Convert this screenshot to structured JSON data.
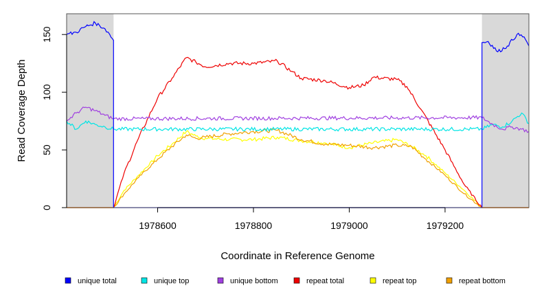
{
  "chart_data": {
    "type": "line",
    "title": "",
    "xlabel": "Coordinate in Reference Genome",
    "ylabel": "Read Coverage Depth",
    "xlim": [
      1978410,
      1979375
    ],
    "ylim": [
      0,
      168
    ],
    "x_ticks": [
      1978600,
      1978800,
      1979000,
      1979200
    ],
    "x_tick_labels": [
      "1978600",
      "1978800",
      "1979000",
      "1979200"
    ],
    "y_ticks": [
      0,
      50,
      100,
      150
    ],
    "y_tick_labels": [
      "0",
      "50",
      "100",
      "150"
    ],
    "grid": false,
    "shaded_regions": [
      {
        "name": "unique-region-left",
        "x": [
          1978410,
          1978508
        ],
        "color": "#d9d9d9"
      },
      {
        "name": "unique-region-right",
        "x": [
          1979277,
          1979375
        ],
        "color": "#d9d9d9"
      }
    ],
    "repeat_region": [
      1978508,
      1979277
    ],
    "legend_position": "bottom",
    "series": [
      {
        "name": "unique total",
        "color": "#0000ff",
        "x": [
          1978410,
          1978430,
          1978450,
          1978470,
          1978490,
          1978500,
          1978508,
          1978508,
          1979277,
          1979277,
          1979290,
          1979310,
          1979330,
          1979350,
          1979365,
          1979375
        ],
        "values": [
          150,
          152,
          157,
          160,
          155,
          150,
          145,
          0,
          0,
          143,
          144,
          135,
          140,
          150,
          148,
          140
        ]
      },
      {
        "name": "unique top",
        "color": "#00e5e5",
        "x": [
          1978410,
          1978430,
          1978450,
          1978470,
          1978490,
          1978508,
          1979277,
          1979300,
          1979320,
          1979340,
          1979360,
          1979375
        ],
        "values": [
          75,
          68,
          75,
          72,
          70,
          68,
          68,
          72,
          70,
          75,
          82,
          73
        ]
      },
      {
        "name": "unique bottom",
        "color": "#a040e0",
        "x": [
          1978410,
          1978430,
          1978450,
          1978470,
          1978490,
          1978508,
          1979277,
          1979300,
          1979320,
          1979340,
          1979360,
          1979375
        ],
        "values": [
          75,
          82,
          87,
          84,
          80,
          77,
          78,
          72,
          68,
          70,
          68,
          66
        ]
      },
      {
        "name": "repeat total",
        "color": "#ee0000",
        "x": [
          1978410,
          1978508,
          1978530,
          1978560,
          1978600,
          1978630,
          1978660,
          1978680,
          1978700,
          1978750,
          1978800,
          1978850,
          1978880,
          1978900,
          1978950,
          1979000,
          1979030,
          1979050,
          1979100,
          1979120,
          1979150,
          1979200,
          1979240,
          1979277,
          1979375
        ],
        "values": [
          0,
          0,
          30,
          60,
          95,
          112,
          130,
          126,
          122,
          125,
          125,
          127,
          118,
          112,
          110,
          104,
          106,
          113,
          111,
          105,
          85,
          50,
          20,
          0,
          0
        ]
      },
      {
        "name": "repeat top",
        "color": "#ffff00",
        "x": [
          1978410,
          1978508,
          1978530,
          1978560,
          1978600,
          1978630,
          1978660,
          1978680,
          1978700,
          1978750,
          1978800,
          1978850,
          1978900,
          1978950,
          1979000,
          1979050,
          1979100,
          1979130,
          1979160,
          1979200,
          1979240,
          1979277,
          1979375
        ],
        "values": [
          0,
          0,
          15,
          28,
          45,
          55,
          66,
          62,
          60,
          59,
          59,
          61,
          58,
          56,
          52,
          56,
          59,
          53,
          45,
          30,
          15,
          0,
          0
        ]
      },
      {
        "name": "repeat bottom",
        "color": "#f0a000",
        "x": [
          1978410,
          1978508,
          1978530,
          1978560,
          1978600,
          1978630,
          1978660,
          1978680,
          1978700,
          1978750,
          1978800,
          1978850,
          1978900,
          1978950,
          1979000,
          1979050,
          1979100,
          1979130,
          1979160,
          1979200,
          1979240,
          1979277,
          1979375
        ],
        "values": [
          0,
          0,
          12,
          26,
          42,
          53,
          63,
          60,
          61,
          64,
          66,
          67,
          59,
          55,
          54,
          52,
          54,
          53,
          42,
          28,
          12,
          0,
          0
        ]
      }
    ]
  }
}
